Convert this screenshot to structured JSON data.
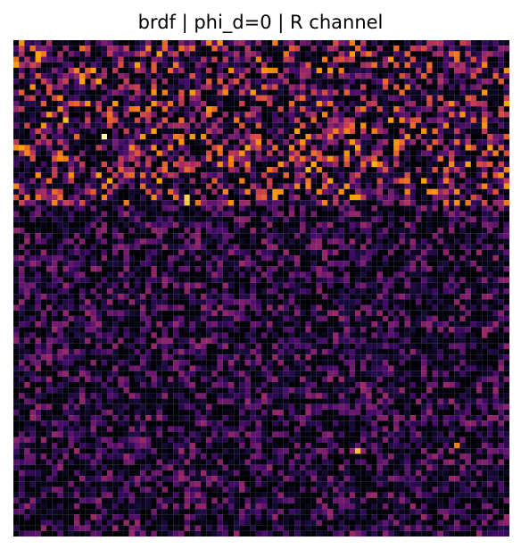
{
  "chart_data": {
    "type": "heatmap",
    "title": "brdf | phi_d=0 | R channel",
    "xlabel": "",
    "ylabel": "",
    "colormap": "inferno",
    "grid": false,
    "axes_visible": false,
    "rows": 90,
    "cols": 90,
    "value_range": [
      0,
      1
    ],
    "row_band_intensity": {
      "rows_0_30": 0.42,
      "rows_30_90": 0.22
    },
    "hot_spots": [
      {
        "row": 17,
        "col": 16,
        "value": 1.0
      },
      {
        "row": 28,
        "col": 31,
        "value": 0.9
      },
      {
        "row": 29,
        "col": 31,
        "value": 0.88
      },
      {
        "row": 23,
        "col": 53,
        "value": 0.82
      },
      {
        "row": 22,
        "col": 54,
        "value": 0.8
      },
      {
        "row": 22,
        "col": 65,
        "value": 0.82
      },
      {
        "row": 19,
        "col": 62,
        "value": 0.78
      },
      {
        "row": 14,
        "col": 9,
        "value": 0.85
      },
      {
        "row": 13,
        "col": 81,
        "value": 0.75
      },
      {
        "row": 29,
        "col": 7,
        "value": 0.72
      },
      {
        "row": 74,
        "col": 62,
        "value": 0.85
      },
      {
        "row": 73,
        "col": 80,
        "value": 0.72
      },
      {
        "row": 4,
        "col": 29,
        "value": 0.7
      },
      {
        "row": 5,
        "col": 59,
        "value": 0.7
      }
    ],
    "seed": 7
  }
}
